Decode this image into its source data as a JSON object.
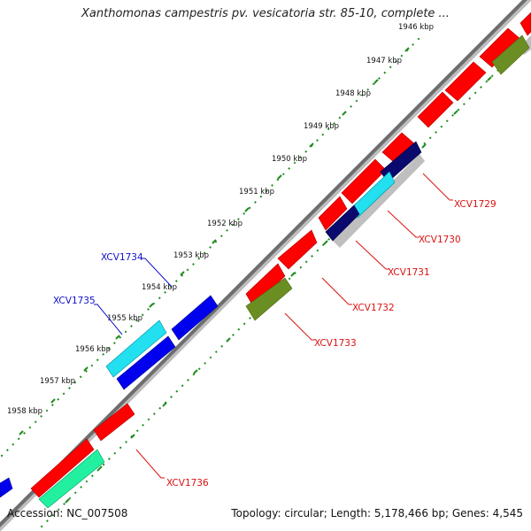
{
  "title": "Xanthomonas campestris pv. vesicatoria str. 85-10, complete ...",
  "accession": "Accession: NC_007508",
  "summary": "Topology: circular; Length: 5,178,466 bp; Genes: 4,545",
  "ticks": [
    {
      "label": "1946 kbp"
    },
    {
      "label": "1947 kbp"
    },
    {
      "label": "1948 kbp"
    },
    {
      "label": "1949 kbp"
    },
    {
      "label": "1950 kbp"
    },
    {
      "label": "1951 kbp"
    },
    {
      "label": "1952 kbp"
    },
    {
      "label": "1953 kbp"
    },
    {
      "label": "1954 kbp"
    },
    {
      "label": "1955 kbp"
    },
    {
      "label": "1956 kbp"
    },
    {
      "label": "1957 kbp"
    },
    {
      "label": "1958 kbp"
    }
  ],
  "genes": [
    {
      "label": "XCV1729",
      "color": "#dd1111"
    },
    {
      "label": "XCV1730",
      "color": "#dd1111"
    },
    {
      "label": "XCV1731",
      "color": "#dd1111"
    },
    {
      "label": "XCV1732",
      "color": "#dd1111"
    },
    {
      "label": "XCV1733",
      "color": "#dd1111"
    },
    {
      "label": "XCV1734",
      "color": "#1111cc"
    },
    {
      "label": "XCV1735",
      "color": "#1111cc"
    },
    {
      "label": "XCV1736",
      "color": "#dd1111"
    }
  ],
  "colors": {
    "forward_red": "#ff0000",
    "reverse_blue": "#0000ee",
    "cyan": "#22e0f0",
    "navy": "#0a0a6e",
    "olive": "#6b8e23",
    "aqua_green": "#22f0a0",
    "backbone": "#7a7a7a",
    "tick_green": "#1e8c1e"
  }
}
